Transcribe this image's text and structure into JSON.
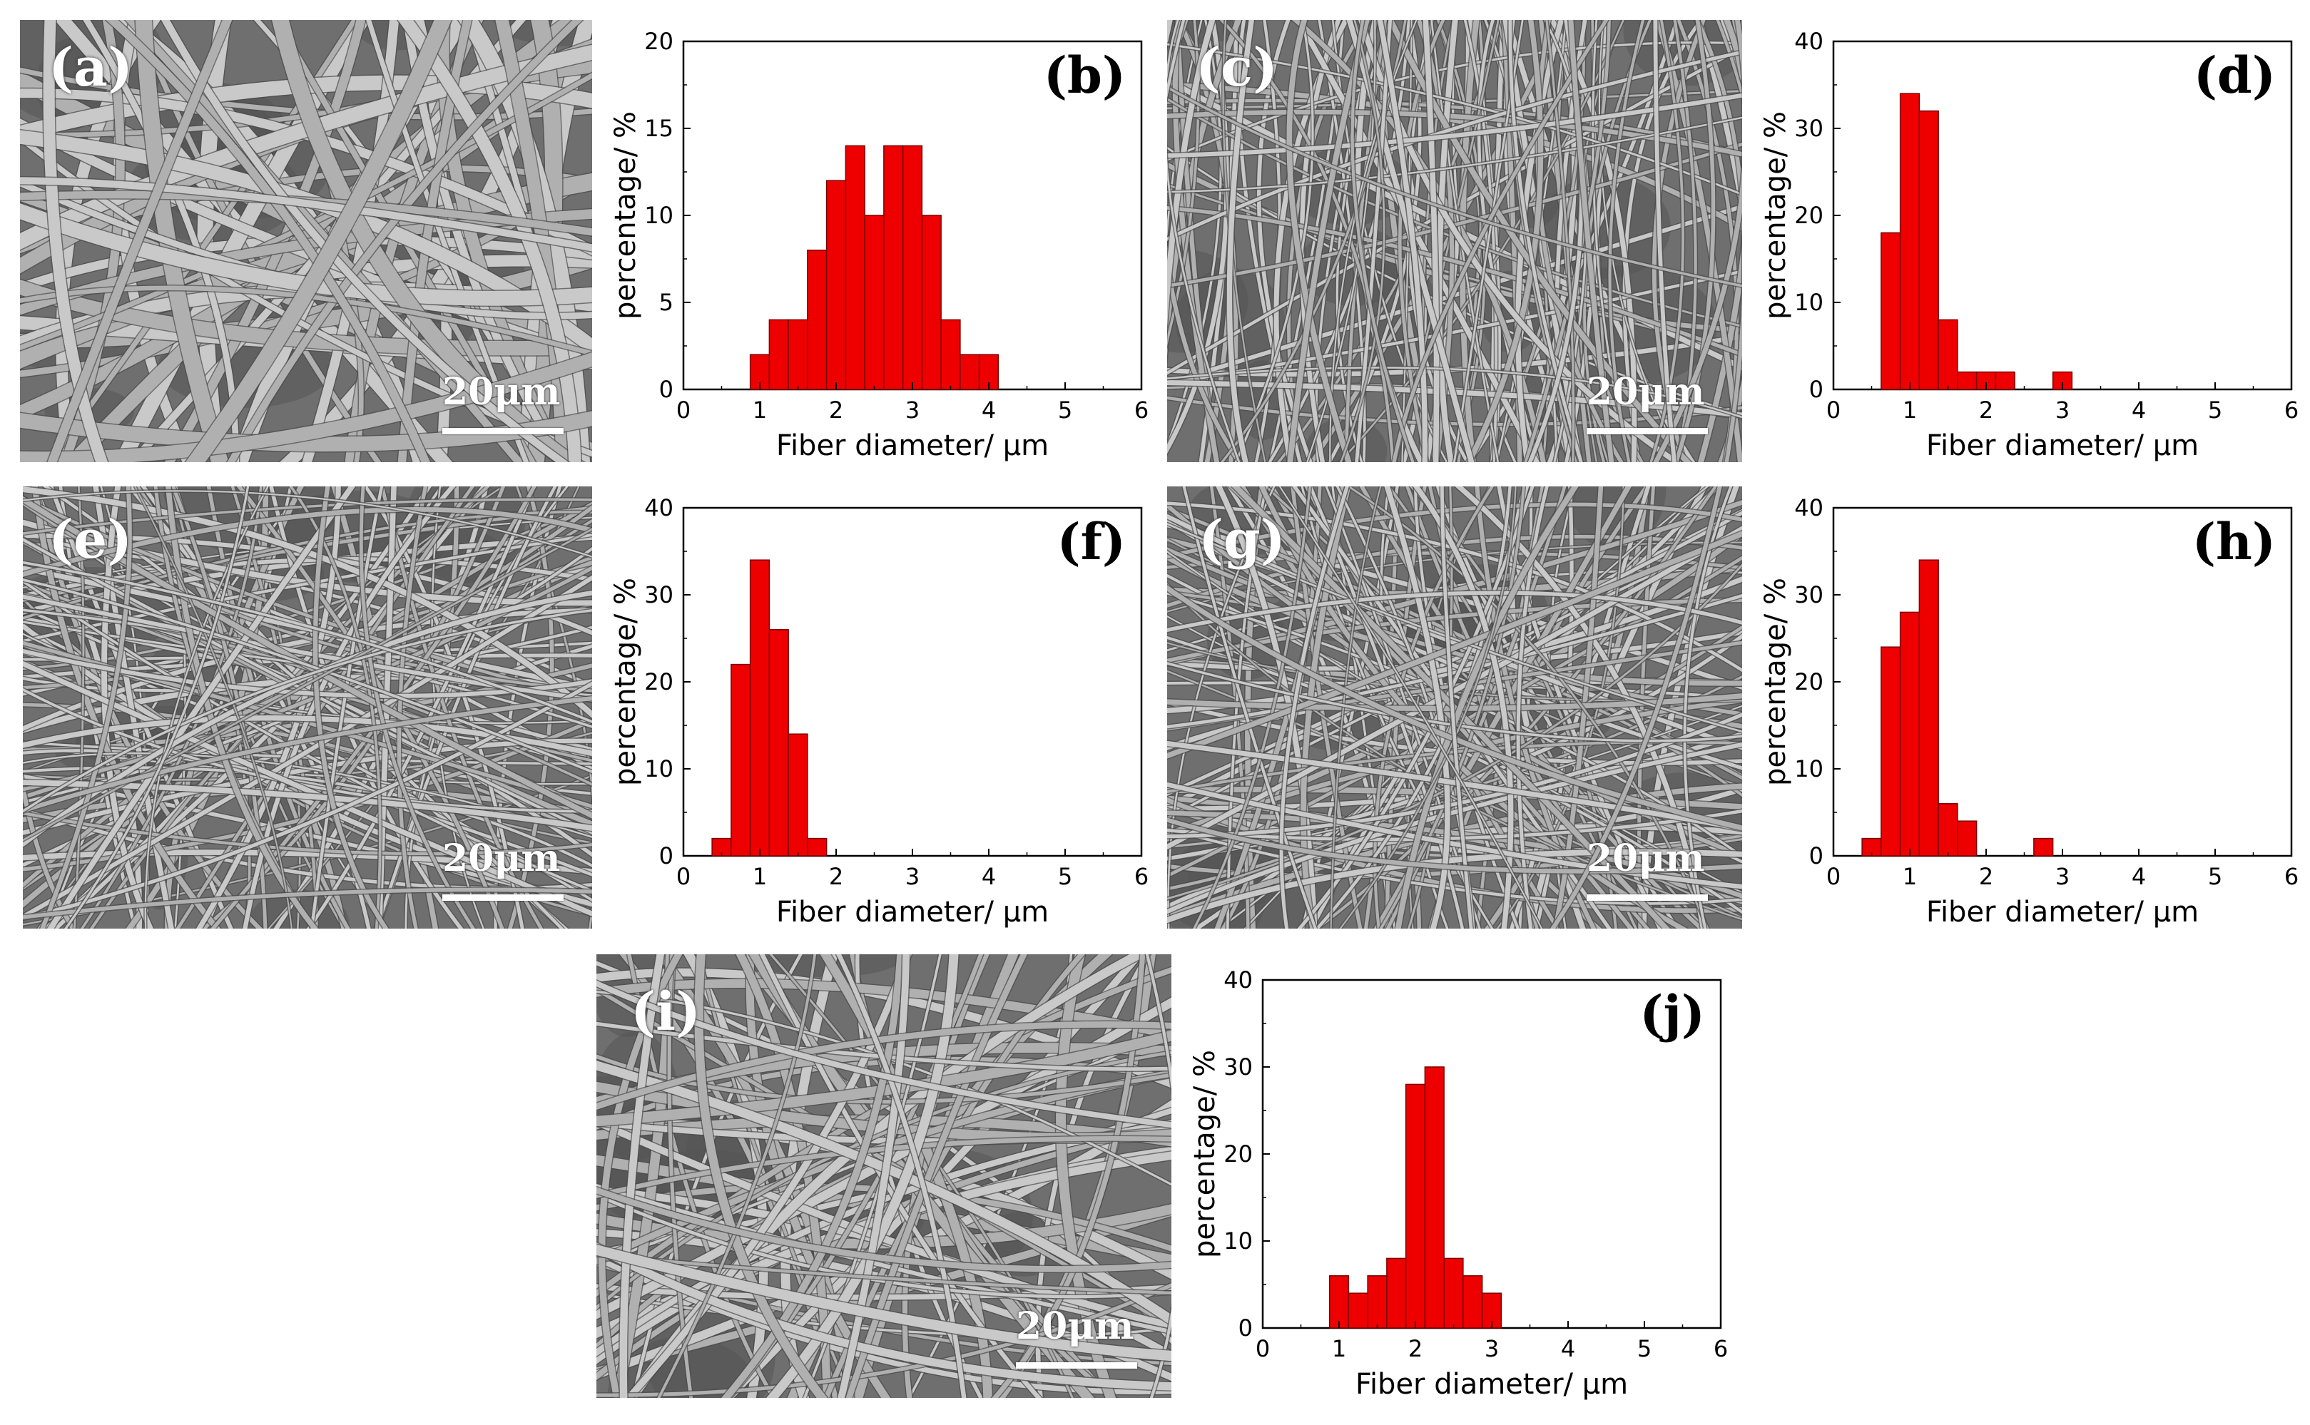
{
  "colors": {
    "bar_fill": "#ee0000",
    "bar_stroke": "#7a0000",
    "axis": "#000000"
  },
  "sem_images": [
    {
      "label": "(a)",
      "scale": "20μm",
      "style": "thick-webbed-fibers"
    },
    {
      "label": "(c)",
      "scale": "20μm",
      "style": "aligned-fine-fibers"
    },
    {
      "label": "(e)",
      "scale": "20μm",
      "style": "random-fine-fibers"
    },
    {
      "label": "(g)",
      "scale": "20μm",
      "style": "random-fine-fibers"
    },
    {
      "label": "(i)",
      "scale": "20μm",
      "style": "mixed-coarse-fibers"
    }
  ],
  "chart_data": [
    {
      "type": "bar",
      "label": "(b)",
      "xlabel": "Fiber diameter/ μm",
      "ylabel": "percentage/ %",
      "xlim": [
        0,
        6
      ],
      "ylim": [
        0,
        20
      ],
      "xticks": [
        0,
        1,
        2,
        3,
        4,
        5,
        6
      ],
      "yticks": [
        0,
        5,
        10,
        15,
        20
      ],
      "bin_width": 0.25,
      "x": [
        1.0,
        1.25,
        1.5,
        1.75,
        2.0,
        2.25,
        2.5,
        2.75,
        3.0,
        3.25,
        3.5,
        3.75,
        4.0,
        4.25,
        4.5
      ],
      "values": [
        2,
        4,
        4,
        8,
        12,
        14,
        10,
        14,
        14,
        10,
        4,
        2,
        2,
        0,
        0
      ]
    },
    {
      "type": "bar",
      "label": "(d)",
      "xlabel": "Fiber diameter/ μm",
      "ylabel": "percentage/ %",
      "xlim": [
        0,
        6
      ],
      "ylim": [
        0,
        40
      ],
      "xticks": [
        0,
        1,
        2,
        3,
        4,
        5,
        6
      ],
      "yticks": [
        0,
        10,
        20,
        30,
        40
      ],
      "bin_width": 0.25,
      "x": [
        0.75,
        1.0,
        1.25,
        1.5,
        1.75,
        2.0,
        2.25,
        2.5,
        2.75,
        3.0
      ],
      "values": [
        18,
        34,
        32,
        8,
        2,
        2,
        2,
        0,
        0,
        2
      ]
    },
    {
      "type": "bar",
      "label": "(f)",
      "xlabel": "Fiber diameter/ μm",
      "ylabel": "percentage/ %",
      "xlim": [
        0,
        6
      ],
      "ylim": [
        0,
        40
      ],
      "xticks": [
        0,
        1,
        2,
        3,
        4,
        5,
        6
      ],
      "yticks": [
        0,
        10,
        20,
        30,
        40
      ],
      "bin_width": 0.25,
      "x": [
        0.5,
        0.75,
        1.0,
        1.25,
        1.5,
        1.75
      ],
      "values": [
        2,
        22,
        34,
        26,
        14,
        2
      ]
    },
    {
      "type": "bar",
      "label": "(h)",
      "xlabel": "Fiber diameter/ μm",
      "ylabel": "percentage/ %",
      "xlim": [
        0,
        6
      ],
      "ylim": [
        0,
        40
      ],
      "xticks": [
        0,
        1,
        2,
        3,
        4,
        5,
        6
      ],
      "yticks": [
        0,
        10,
        20,
        30,
        40
      ],
      "bin_width": 0.25,
      "x": [
        0.5,
        0.75,
        1.0,
        1.25,
        1.5,
        1.75,
        2.0,
        2.25,
        2.5,
        2.75
      ],
      "values": [
        2,
        24,
        28,
        34,
        6,
        4,
        0,
        0,
        0,
        2
      ]
    },
    {
      "type": "bar",
      "label": "(j)",
      "xlabel": "Fiber diameter/ μm",
      "ylabel": "percentage/ %",
      "xlim": [
        0,
        6
      ],
      "ylim": [
        0,
        40
      ],
      "xticks": [
        0,
        1,
        2,
        3,
        4,
        5,
        6
      ],
      "yticks": [
        0,
        10,
        20,
        30,
        40
      ],
      "bin_width": 0.25,
      "x": [
        1.0,
        1.25,
        1.5,
        1.75,
        2.0,
        2.25,
        2.5,
        2.75,
        3.0,
        3.25
      ],
      "values": [
        6,
        4,
        6,
        8,
        28,
        30,
        8,
        6,
        4,
        0
      ]
    }
  ]
}
